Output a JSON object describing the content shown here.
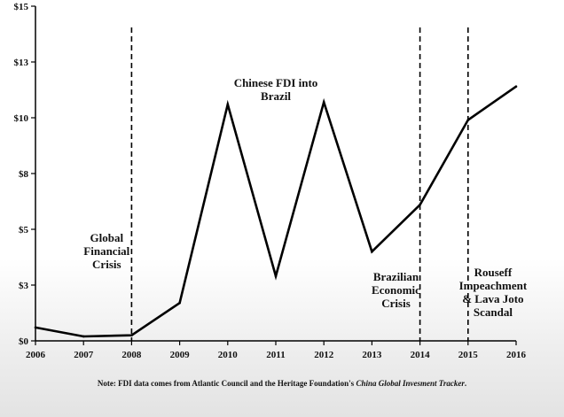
{
  "chart_data": {
    "type": "line",
    "title": "",
    "xlabel": "",
    "ylabel": "",
    "x": [
      "2006",
      "2007",
      "2008",
      "2009",
      "2010",
      "2011",
      "2012",
      "2013",
      "2014",
      "2015",
      "2016"
    ],
    "series": [
      {
        "values": [
          0.6,
          0.2,
          0.25,
          1.7,
          10.6,
          2.9,
          10.7,
          4.0,
          6.1,
          9.9,
          11.4
        ]
      }
    ],
    "ylim": [
      0,
      15
    ],
    "y_ticks": [
      0,
      2.5,
      5,
      7.5,
      10,
      12.5,
      15
    ],
    "y_tick_labels": [
      "$0",
      "$3",
      "$5",
      "$8",
      "$10",
      "$13",
      "$15"
    ],
    "grid": false,
    "event_lines": [
      {
        "x": "2008",
        "label_lines": [
          "Global",
          "Financial",
          "Crisis"
        ]
      },
      {
        "x": "2014",
        "label_lines": [
          "Brazilian",
          "Economic",
          "Crisis"
        ]
      },
      {
        "x": "2015",
        "label_lines": [
          "Rouseff",
          "Impeachment",
          "& Lava Joto",
          "Scandal"
        ]
      }
    ],
    "series_label_lines": [
      "Chinese FDI into",
      "Brazil"
    ],
    "line_color": "#000000"
  },
  "note": {
    "prefix": "Note: FDI data comes from Atlantic Council and the Heritage Foundation's ",
    "source_italic": "China Global Invesment Tracker",
    "suffix": "."
  }
}
